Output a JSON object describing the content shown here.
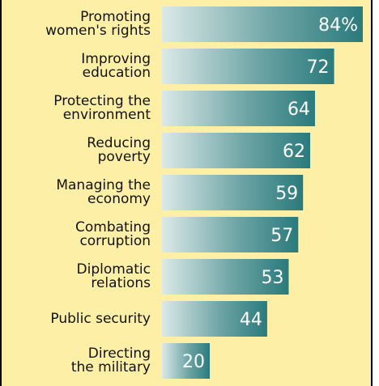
{
  "chart_data": {
    "type": "bar",
    "orientation": "horizontal",
    "categories": [
      "Promoting\nwomen's rights",
      "Improving\neducation",
      "Protecting the\nenvironment",
      "Reducing\npoverty",
      "Managing the\neconomy",
      "Combating\ncorruption",
      "Diplomatic\nrelations",
      "Public security",
      "Directing\nthe military"
    ],
    "values": [
      84,
      72,
      64,
      62,
      59,
      57,
      53,
      44,
      20
    ],
    "value_labels": [
      "84%",
      "72",
      "64",
      "62",
      "59",
      "57",
      "53",
      "44",
      "20"
    ],
    "color": "#2a7a7c"
  }
}
